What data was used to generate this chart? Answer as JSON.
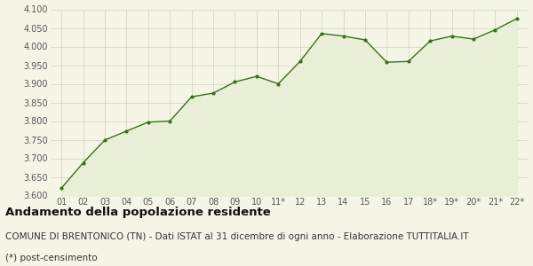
{
  "x_labels": [
    "01",
    "02",
    "03",
    "04",
    "05",
    "06",
    "07",
    "08",
    "09",
    "10",
    "11*",
    "12",
    "13",
    "14",
    "15",
    "16",
    "17",
    "18*",
    "19*",
    "20*",
    "21*",
    "22*"
  ],
  "values": [
    3620,
    3688,
    3749,
    3773,
    3797,
    3800,
    3865,
    3875,
    3905,
    3920,
    3900,
    3960,
    4035,
    4028,
    4018,
    3958,
    3960,
    4015,
    4028,
    4020,
    4045,
    4075
  ],
  "line_color": "#3d6e1e",
  "fill_color": "#e8efd6",
  "marker_color": "#3d6e1e",
  "bg_color": "#f5f5e6",
  "grid_color": "#d0d0c0",
  "ylim": [
    3600,
    4100
  ],
  "yticks": [
    3600,
    3650,
    3700,
    3750,
    3800,
    3850,
    3900,
    3950,
    4000,
    4050,
    4100
  ],
  "title": "Andamento della popolazione residente",
  "subtitle": "COMUNE DI BRENTONICO (TN) - Dati ISTAT al 31 dicembre di ogni anno - Elaborazione TUTTITALIA.IT",
  "footnote": "(*) post-censimento",
  "title_fontsize": 9.5,
  "subtitle_fontsize": 7.5,
  "footnote_fontsize": 7.5,
  "tick_fontsize": 7,
  "axis_label_color": "#555555"
}
